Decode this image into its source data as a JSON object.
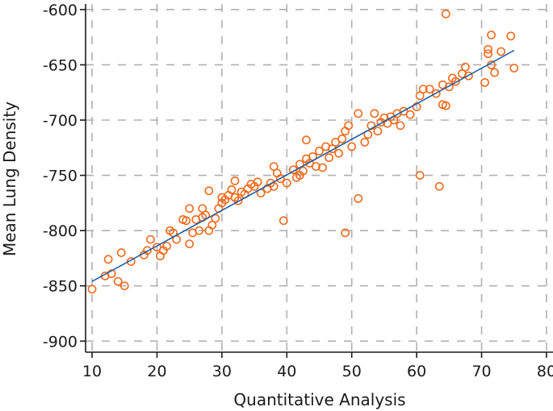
{
  "chart_data": {
    "type": "scatter",
    "title": "",
    "xlabel": "Quantitative Analysis",
    "ylabel": "Mean Lung Density",
    "xlim": [
      9,
      81
    ],
    "ylim": [
      -910,
      -595
    ],
    "x_ticks": [
      10,
      20,
      30,
      40,
      50,
      60,
      70,
      80
    ],
    "x_tick_labels": [
      "10",
      "20",
      "30",
      "40",
      "50",
      "60",
      "70",
      "80"
    ],
    "y_ticks": [
      -600,
      -650,
      -700,
      -750,
      -800,
      -850,
      -900
    ],
    "y_tick_labels": [
      "-600",
      "-650",
      "-700",
      "-750",
      "-800",
      "-850",
      "-900"
    ],
    "grid": true,
    "point_color": "#f26a1b",
    "line_color": "#1f5fa8",
    "trendline": {
      "x": [
        10,
        75
      ],
      "y": [
        -846,
        -637
      ]
    },
    "points": [
      [
        10,
        -853
      ],
      [
        12,
        -841
      ],
      [
        12.5,
        -826
      ],
      [
        13,
        -839
      ],
      [
        14,
        -846
      ],
      [
        14.5,
        -820
      ],
      [
        15,
        -850
      ],
      [
        16,
        -828
      ],
      [
        18,
        -822
      ],
      [
        18.5,
        -818
      ],
      [
        19,
        -808
      ],
      [
        20,
        -815
      ],
      [
        20.5,
        -823
      ],
      [
        21,
        -818
      ],
      [
        21.5,
        -814
      ],
      [
        22,
        -800
      ],
      [
        22.5,
        -802
      ],
      [
        23,
        -808
      ],
      [
        24,
        -790
      ],
      [
        24.5,
        -791
      ],
      [
        25,
        -780
      ],
      [
        25,
        -812
      ],
      [
        25.5,
        -802
      ],
      [
        26,
        -790
      ],
      [
        26.5,
        -800
      ],
      [
        27,
        -788
      ],
      [
        27,
        -780
      ],
      [
        27.5,
        -786
      ],
      [
        28,
        -800
      ],
      [
        28,
        -764
      ],
      [
        28.5,
        -795
      ],
      [
        29,
        -789
      ],
      [
        29.5,
        -780
      ],
      [
        30,
        -775
      ],
      [
        30,
        -770
      ],
      [
        30.5,
        -772
      ],
      [
        31,
        -768
      ],
      [
        31.5,
        -763
      ],
      [
        32,
        -755
      ],
      [
        32,
        -770
      ],
      [
        32.5,
        -773
      ],
      [
        33,
        -765
      ],
      [
        33.5,
        -767
      ],
      [
        34,
        -762
      ],
      [
        34.5,
        -758
      ],
      [
        35,
        -760
      ],
      [
        35.5,
        -756
      ],
      [
        36,
        -766
      ],
      [
        37,
        -762
      ],
      [
        37.5,
        -757
      ],
      [
        38,
        -742
      ],
      [
        38,
        -760
      ],
      [
        38.5,
        -748
      ],
      [
        39,
        -753
      ],
      [
        39.5,
        -791
      ],
      [
        40,
        -757
      ],
      [
        41,
        -745
      ],
      [
        41.5,
        -752
      ],
      [
        42,
        -740
      ],
      [
        42,
        -750
      ],
      [
        42.5,
        -746
      ],
      [
        43,
        -718
      ],
      [
        43,
        -735
      ],
      [
        43.5,
        -739
      ],
      [
        44,
        -733
      ],
      [
        44.5,
        -742
      ],
      [
        45,
        -728
      ],
      [
        45.5,
        -743
      ],
      [
        46,
        -724
      ],
      [
        46.5,
        -734
      ],
      [
        47,
        -726
      ],
      [
        47.5,
        -720
      ],
      [
        48,
        -730
      ],
      [
        48.5,
        -717
      ],
      [
        49,
        -710
      ],
      [
        49,
        -802
      ],
      [
        49.5,
        -705
      ],
      [
        50,
        -724
      ],
      [
        51,
        -694
      ],
      [
        51,
        -771
      ],
      [
        52,
        -720
      ],
      [
        52.5,
        -713
      ],
      [
        53,
        -705
      ],
      [
        53.5,
        -694
      ],
      [
        54,
        -710
      ],
      [
        54.5,
        -702
      ],
      [
        55,
        -698
      ],
      [
        55.5,
        -703
      ],
      [
        56,
        -697
      ],
      [
        56.5,
        -700
      ],
      [
        57,
        -694
      ],
      [
        57.5,
        -705
      ],
      [
        58,
        -692
      ],
      [
        59,
        -695
      ],
      [
        60,
        -688
      ],
      [
        60.5,
        -678
      ],
      [
        60.5,
        -750
      ],
      [
        61,
        -672
      ],
      [
        62,
        -672
      ],
      [
        63,
        -676
      ],
      [
        63.5,
        -760
      ],
      [
        64,
        -668
      ],
      [
        64,
        -686
      ],
      [
        64.5,
        -687
      ],
      [
        64.5,
        -604
      ],
      [
        65,
        -670
      ],
      [
        65.5,
        -662
      ],
      [
        66,
        -665
      ],
      [
        67,
        -658
      ],
      [
        67.5,
        -652
      ],
      [
        68,
        -660
      ],
      [
        70.5,
        -666
      ],
      [
        71,
        -640
      ],
      [
        71,
        -636
      ],
      [
        71.5,
        -623
      ],
      [
        71.5,
        -650
      ],
      [
        72,
        -657
      ],
      [
        73,
        -638
      ],
      [
        74.5,
        -624
      ],
      [
        75,
        -653
      ]
    ]
  }
}
